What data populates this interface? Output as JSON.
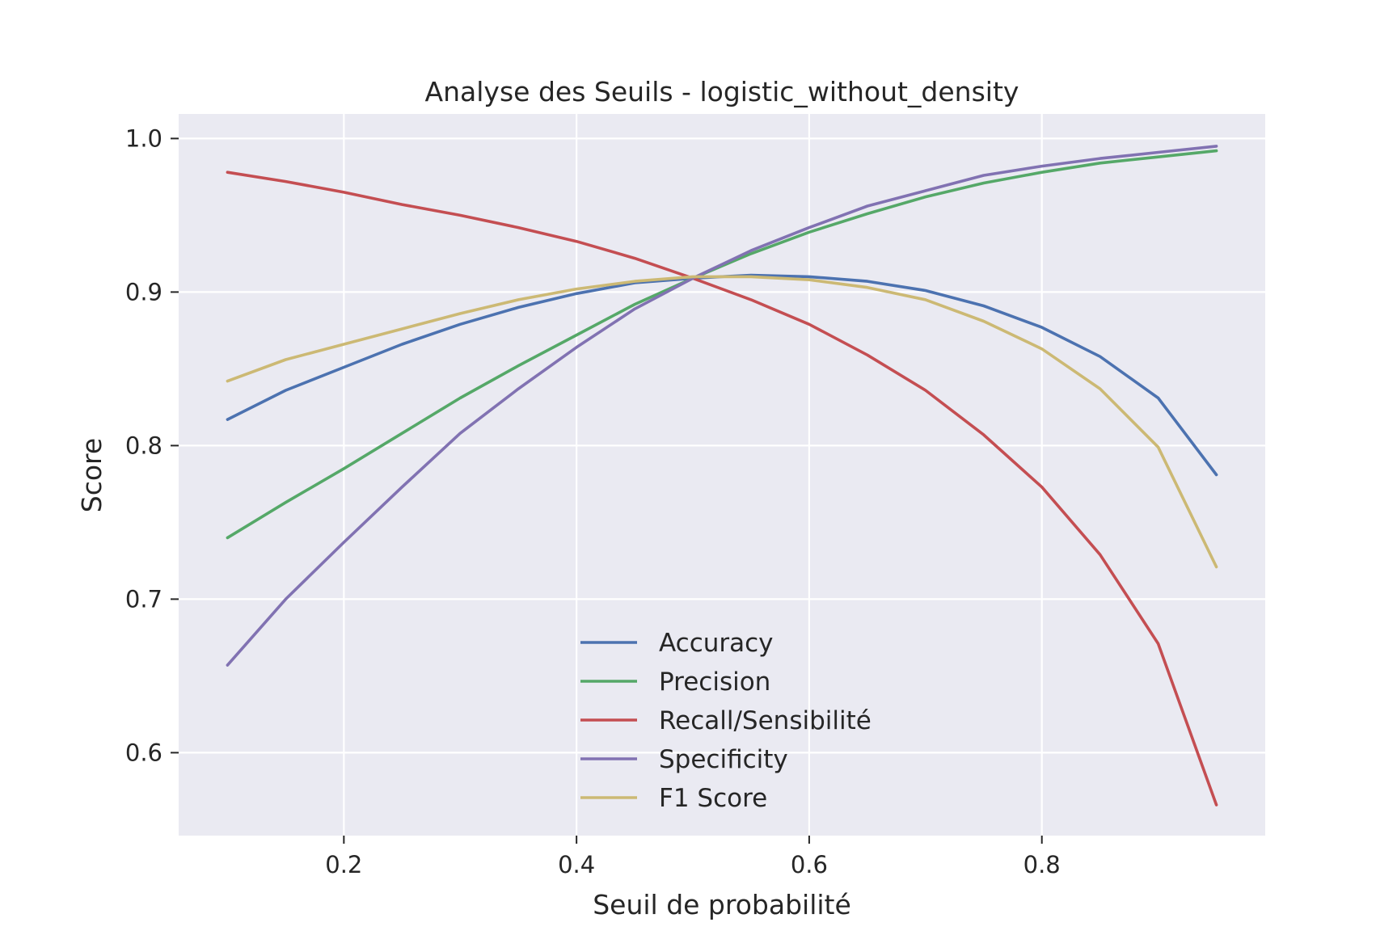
{
  "chart_data": {
    "type": "line",
    "title": "Analyse des Seuils - logistic_without_density",
    "xlabel": "Seuil de probabilité",
    "ylabel": "Score",
    "xlim": [
      0.058,
      0.992
    ],
    "ylim": [
      0.546,
      1.016
    ],
    "xticks": [
      0.2,
      0.4,
      0.6,
      0.8
    ],
    "xtick_labels": [
      "0.2",
      "0.4",
      "0.6",
      "0.8"
    ],
    "yticks": [
      0.6,
      0.7,
      0.8,
      0.9,
      1.0
    ],
    "ytick_labels": [
      "0.6",
      "0.7",
      "0.8",
      "0.9",
      "1.0"
    ],
    "grid": true,
    "legend_position": "lower center",
    "background": "#eaeaf2",
    "x": [
      0.1,
      0.15,
      0.2,
      0.25,
      0.3,
      0.35,
      0.4,
      0.45,
      0.5,
      0.55,
      0.6,
      0.65,
      0.7,
      0.75,
      0.8,
      0.85,
      0.9,
      0.95
    ],
    "series": [
      {
        "name": "Accuracy",
        "color": "#4c72b0",
        "values": [
          0.817,
          0.836,
          0.851,
          0.866,
          0.879,
          0.89,
          0.899,
          0.906,
          0.909,
          0.911,
          0.91,
          0.907,
          0.901,
          0.891,
          0.877,
          0.858,
          0.831,
          0.781
        ]
      },
      {
        "name": "Precision",
        "color": "#55a868",
        "values": [
          0.74,
          0.763,
          0.785,
          0.808,
          0.831,
          0.852,
          0.872,
          0.892,
          0.909,
          0.925,
          0.939,
          0.951,
          0.962,
          0.971,
          0.978,
          0.984,
          0.988,
          0.992
        ]
      },
      {
        "name": "Recall/Sensibilité",
        "color": "#c44e52",
        "values": [
          0.978,
          0.972,
          0.965,
          0.957,
          0.95,
          0.942,
          0.933,
          0.922,
          0.909,
          0.895,
          0.879,
          0.859,
          0.836,
          0.807,
          0.773,
          0.729,
          0.671,
          0.566
        ]
      },
      {
        "name": "Specificity",
        "color": "#8172b2",
        "values": [
          0.657,
          0.7,
          0.737,
          0.773,
          0.808,
          0.837,
          0.864,
          0.889,
          0.909,
          0.927,
          0.942,
          0.956,
          0.966,
          0.976,
          0.982,
          0.987,
          0.991,
          0.995
        ]
      },
      {
        "name": "F1 Score",
        "color": "#ccb974",
        "values": [
          0.842,
          0.856,
          0.866,
          0.876,
          0.886,
          0.895,
          0.902,
          0.907,
          0.91,
          0.91,
          0.908,
          0.903,
          0.895,
          0.881,
          0.863,
          0.837,
          0.799,
          0.721
        ]
      }
    ]
  }
}
